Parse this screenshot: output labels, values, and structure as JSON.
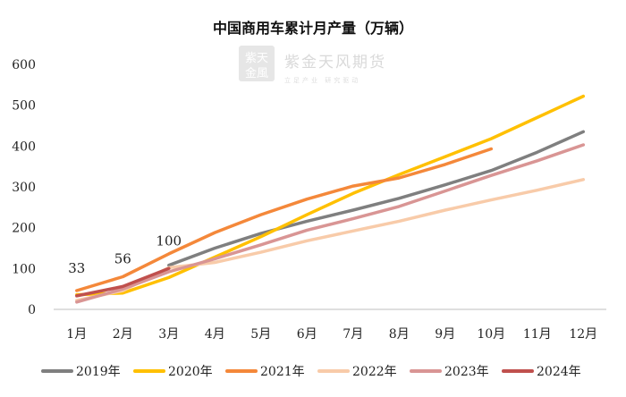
{
  "chart_data": {
    "type": "line",
    "title": "中国商用车累计月产量（万辆）",
    "categories": [
      "1月",
      "2月",
      "3月",
      "4月",
      "5月",
      "6月",
      "7月",
      "8月",
      "9月",
      "10月",
      "11月",
      "12月"
    ],
    "ylim": [
      0,
      600
    ],
    "yticks": [
      0,
      100,
      200,
      300,
      400,
      500,
      600
    ],
    "grid": false,
    "legend_position": "bottom",
    "series": [
      {
        "name": "2019年",
        "color": "#7f7f7f",
        "values": [
          null,
          null,
          108,
          150,
          186,
          216,
          243,
          272,
          305,
          340,
          385,
          435
        ]
      },
      {
        "name": "2020年",
        "color": "#ffc000",
        "values": [
          36,
          40,
          78,
          128,
          178,
          232,
          284,
          330,
          374,
          418,
          470,
          522
        ]
      },
      {
        "name": "2021年",
        "color": "#f4883a",
        "values": [
          46,
          80,
          136,
          188,
          232,
          270,
          302,
          322,
          355,
          393,
          null,
          null
        ]
      },
      {
        "name": "2022年",
        "color": "#f8cba9",
        "values": [
          22,
          46,
          102,
          115,
          140,
          168,
          192,
          216,
          243,
          268,
          292,
          318
        ]
      },
      {
        "name": "2023年",
        "color": "#d99594",
        "values": [
          18,
          50,
          92,
          124,
          158,
          194,
          222,
          252,
          290,
          328,
          364,
          403
        ]
      },
      {
        "name": "2024年",
        "color": "#c0504d",
        "values": [
          33,
          56,
          100,
          null,
          null,
          null,
          null,
          null,
          null,
          null,
          null,
          null
        ]
      }
    ],
    "data_labels": [
      {
        "series": "2024年",
        "index": 0,
        "text": "33"
      },
      {
        "series": "2024年",
        "index": 1,
        "text": "56"
      },
      {
        "series": "2024年",
        "index": 2,
        "text": "100"
      }
    ]
  },
  "watermark": {
    "logo_text": "紫金天风",
    "company": "紫金天风期货",
    "slogan": "立足产业  研究驱动"
  }
}
